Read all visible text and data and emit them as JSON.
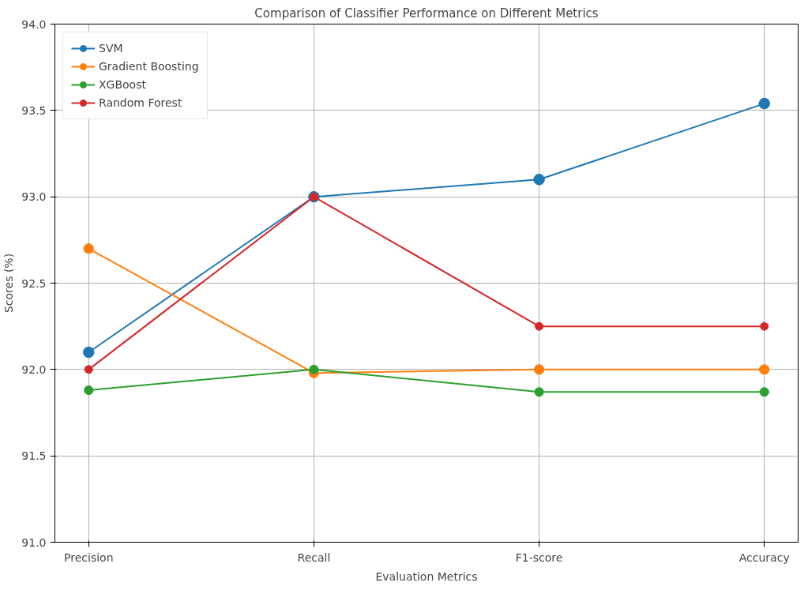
{
  "chart_data": {
    "type": "line",
    "title": "Comparison of Classifier Performance on Different Metrics",
    "xlabel": "Evaluation Metrics",
    "ylabel": "Scores (%)",
    "categories": [
      "Precision",
      "Recall",
      "F1-score",
      "Accuracy"
    ],
    "series": [
      {
        "name": "SVM",
        "color": "#1f77b4",
        "values": [
          92.1,
          93.0,
          93.1,
          93.54
        ]
      },
      {
        "name": "Gradient Boosting",
        "color": "#ff7f0e",
        "values": [
          92.7,
          91.98,
          92.0,
          92.0
        ]
      },
      {
        "name": "XGBoost",
        "color": "#2ca02c",
        "values": [
          91.88,
          92.0,
          91.87,
          91.87
        ]
      },
      {
        "name": "Random Forest",
        "color": "#d62728",
        "values": [
          92.0,
          93.0,
          92.25,
          92.25
        ]
      }
    ],
    "ylim": [
      91.0,
      94.0
    ],
    "yticks": [
      {
        "value": 91.0,
        "label": "91.0"
      },
      {
        "value": 91.5,
        "label": "91.5"
      },
      {
        "value": 92.0,
        "label": "92.0"
      },
      {
        "value": 92.5,
        "label": "92.5"
      },
      {
        "value": 93.0,
        "label": "93.0"
      },
      {
        "value": 93.5,
        "label": "93.5"
      },
      {
        "value": 94.0,
        "label": "94.0"
      }
    ],
    "grid": true,
    "legend": "top left",
    "marker": "circle",
    "line_style": "solid"
  }
}
